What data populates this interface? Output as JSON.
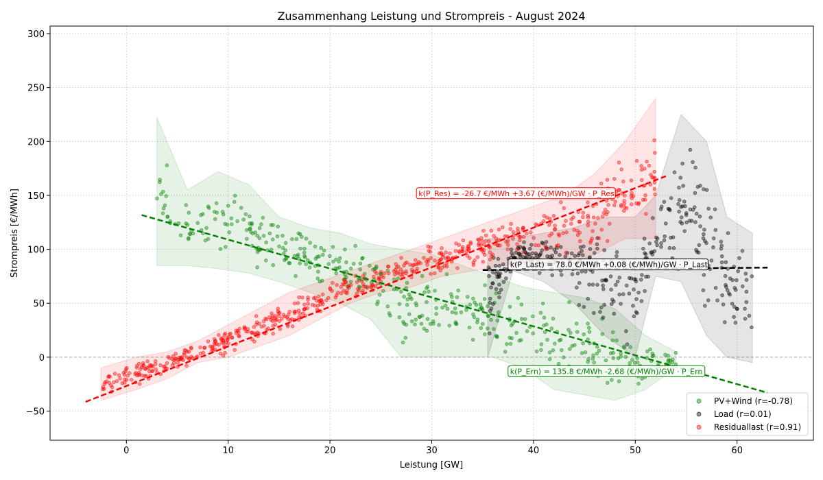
{
  "chart_data": {
    "type": "scatter",
    "title": "Zusammenhang Leistung und Strompreis - August 2024",
    "xlabel": "Leistung [GW]",
    "ylabel": "Strompreis [€/MWh]",
    "xlim": [
      -7.5,
      67.5
    ],
    "ylim": [
      -77,
      307
    ],
    "xticks": [
      0,
      10,
      20,
      30,
      40,
      50,
      60
    ],
    "yticks": [
      -50,
      0,
      50,
      100,
      150,
      200,
      250,
      300
    ],
    "grid": true,
    "legend_position": "lower-right",
    "zero_line": 0,
    "series": [
      {
        "name": "PV+Wind (r=-0.78)",
        "color": "#008000",
        "x_range": [
          1.5,
          63
        ],
        "fit": {
          "intercept": 135.8,
          "slope": -2.68,
          "x_from": 1.5,
          "x_to": 63
        },
        "band": {
          "x": [
            3,
            6,
            9,
            12,
            15,
            18,
            21,
            24,
            27,
            30,
            33,
            36,
            39,
            42,
            45,
            48,
            51,
            54
          ],
          "low": [
            85,
            85,
            82,
            78,
            70,
            60,
            50,
            35,
            0,
            0,
            0,
            0,
            -10,
            -30,
            -35,
            -40,
            -30,
            -10
          ],
          "high": [
            222,
            155,
            172,
            160,
            130,
            120,
            115,
            105,
            100,
            95,
            85,
            75,
            65,
            60,
            55,
            45,
            20,
            5
          ]
        }
      },
      {
        "name": "Load (r=0.01)",
        "color": "#000000",
        "x_range": [
          35,
          63.5
        ],
        "fit": {
          "intercept": 78.0,
          "slope": 0.08,
          "x_from": 35,
          "x_to": 63
        },
        "band": {
          "x": [
            35.5,
            38,
            41,
            44,
            47,
            50,
            52,
            54.5,
            57,
            59,
            61.5
          ],
          "low": [
            0,
            80,
            70,
            50,
            20,
            0,
            75,
            70,
            20,
            0,
            -5
          ],
          "high": [
            110,
            110,
            115,
            120,
            130,
            130,
            150,
            225,
            200,
            130,
            115
          ]
        }
      },
      {
        "name": "Residuallast (r=0.91)",
        "color": "#ff0000",
        "x_range": [
          -4,
          53
        ],
        "fit": {
          "intercept": -26.7,
          "slope": 3.67,
          "x_from": -4,
          "x_to": 53
        },
        "band": {
          "x": [
            -2.5,
            1,
            4,
            7,
            10,
            13,
            16,
            19,
            22,
            25,
            28,
            31,
            34,
            37,
            40,
            43,
            46,
            49,
            52
          ],
          "low": [
            -40,
            -30,
            -20,
            -5,
            0,
            10,
            20,
            35,
            50,
            60,
            65,
            75,
            80,
            85,
            85,
            85,
            95,
            110,
            110
          ],
          "high": [
            -10,
            0,
            5,
            15,
            30,
            45,
            60,
            70,
            80,
            90,
            100,
            110,
            120,
            130,
            140,
            150,
            170,
            200,
            240
          ]
        }
      }
    ],
    "annotations": [
      {
        "text": "k(P_Res) = -26.7 €/MWh +3.67 (€/MWh)/GW · P_Res",
        "x": 28.7,
        "y": 152,
        "color": "#ff0000"
      },
      {
        "text": "k(P_Last) = 78.0 €/MWh +0.08 (€/MWh)/GW · P_Last",
        "x": 37.7,
        "y": 86,
        "color": "#000000"
      },
      {
        "text": "k(P_Ern) = 135.8 €/MWh -2.68 (€/MWh)/GW · P_Ern",
        "x": 37.7,
        "y": -13,
        "color": "#008000"
      }
    ]
  }
}
